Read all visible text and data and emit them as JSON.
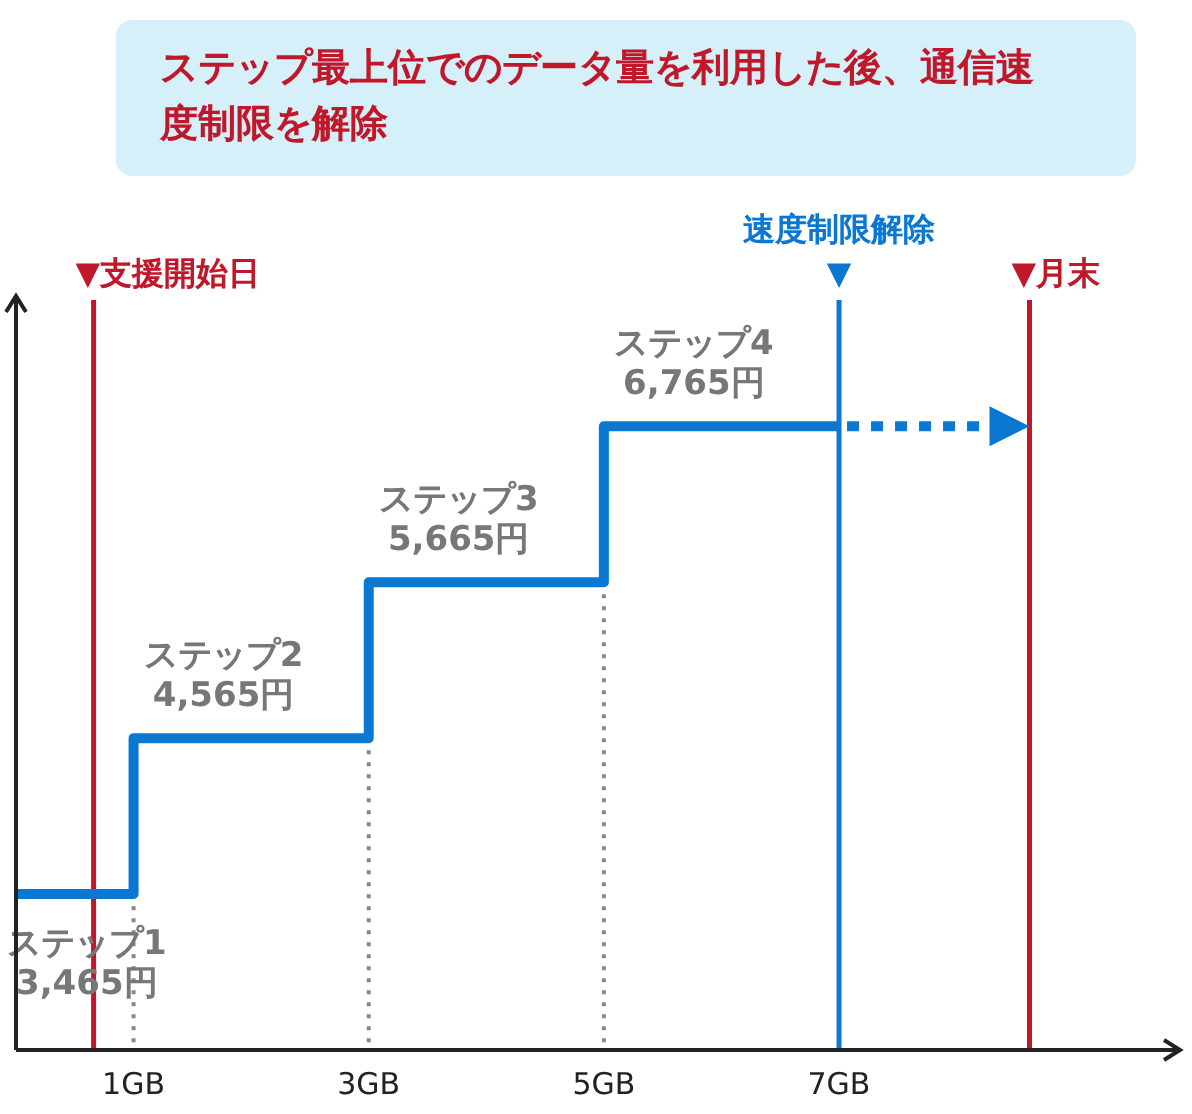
{
  "chart_data": {
    "type": "step",
    "title": "ステップ最上位でのデータ量を利用した後、通信速度制限を解除",
    "xlim": [
      0,
      9.9
    ],
    "xticks": [
      {
        "value": 1,
        "label": "1GB"
      },
      {
        "value": 3,
        "label": "3GB"
      },
      {
        "value": 5,
        "label": "5GB"
      },
      {
        "value": 7,
        "label": "7GB"
      }
    ],
    "tick_labels": "x",
    "series": [
      {
        "color": "#0a78d2",
        "x": [
          0,
          1,
          3,
          5,
          7
        ],
        "values": [
          3465,
          4565,
          5665,
          6765,
          6765
        ],
        "value_labels": [
          "ステップ1\n3,465円",
          "ステップ2\n4,565円",
          "ステップ3\n5,665円",
          "ステップ4\n6,765円",
          null
        ]
      }
    ],
    "ref_lines": [
      {
        "axis": "x",
        "value": 0.66,
        "label": "▼支援開始日",
        "color": "#c0182a"
      },
      {
        "axis": "x",
        "value": 7,
        "label": "速度制限解除\n▼",
        "color": "#0a78d2"
      },
      {
        "axis": "x",
        "value": 8.62,
        "label": "▼月末",
        "color": "#c0182a"
      },
      {
        "axis": "x",
        "value": 1,
        "color": "#888888",
        "line_style": "dotted"
      },
      {
        "axis": "x",
        "value": 3,
        "color": "#888888",
        "line_style": "dotted"
      },
      {
        "axis": "x",
        "value": 5,
        "color": "#888888",
        "line_style": "dotted"
      }
    ]
  }
}
